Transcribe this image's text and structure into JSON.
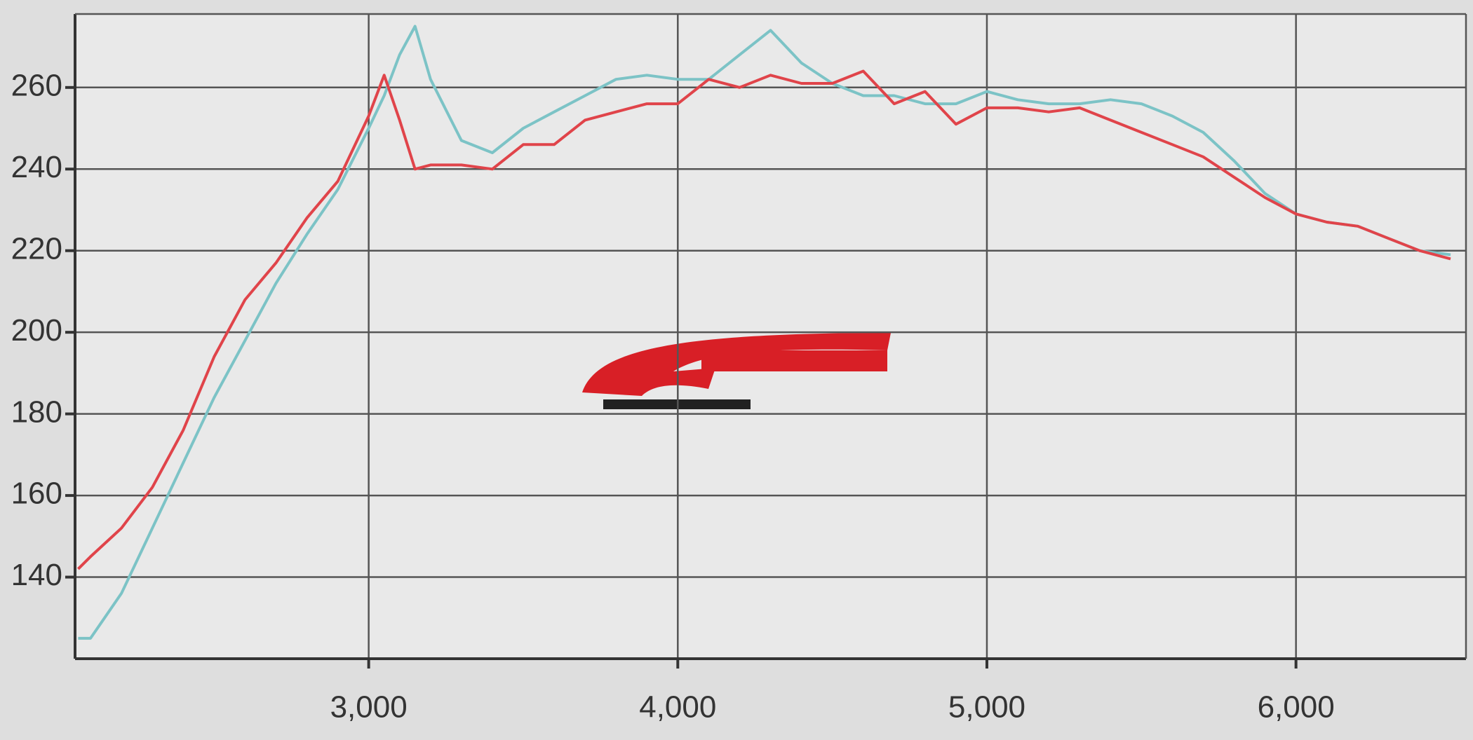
{
  "chart_data": {
    "type": "line",
    "x": [
      2060,
      2100,
      2200,
      2300,
      2400,
      2500,
      2600,
      2700,
      2800,
      2900,
      3000,
      3050,
      3100,
      3150,
      3200,
      3300,
      3400,
      3500,
      3600,
      3700,
      3800,
      3900,
      4000,
      4100,
      4200,
      4300,
      4400,
      4500,
      4600,
      4700,
      4800,
      4900,
      5000,
      5100,
      5200,
      5300,
      5400,
      5500,
      5600,
      5700,
      5800,
      5900,
      6000,
      6100,
      6200,
      6300,
      6400,
      6500
    ],
    "series": [
      {
        "color": "#7cc3c6",
        "values": [
          125,
          125,
          136,
          152,
          168,
          184,
          198,
          212,
          224,
          235,
          250,
          258,
          268,
          275,
          262,
          247,
          244,
          250,
          254,
          258,
          262,
          263,
          262,
          262,
          268,
          274,
          266,
          261,
          258,
          258,
          256,
          256,
          259,
          257,
          256,
          256,
          257,
          256,
          253,
          249,
          242,
          234,
          229,
          227,
          226,
          223,
          220,
          219
        ]
      },
      {
        "color": "#e0444a",
        "values": [
          142,
          145,
          152,
          162,
          176,
          194,
          208,
          217,
          228,
          237,
          253,
          263,
          252,
          240,
          241,
          241,
          240,
          246,
          246,
          252,
          254,
          256,
          256,
          262,
          260,
          263,
          261,
          261,
          264,
          256,
          259,
          251,
          255,
          255,
          254,
          255,
          252,
          249,
          246,
          243,
          238,
          233,
          229,
          227,
          226,
          223,
          220,
          218
        ]
      }
    ],
    "xlim": [
      2050,
      6550
    ],
    "ylim": [
      120,
      278
    ],
    "xticks": [
      {
        "value": 3000,
        "label": "3,000"
      },
      {
        "value": 4000,
        "label": "4,000"
      },
      {
        "value": 5000,
        "label": "5,000"
      },
      {
        "value": 6000,
        "label": "6,000"
      }
    ],
    "yticks": [
      140,
      160,
      180,
      200,
      220,
      240,
      260
    ],
    "grid": true
  }
}
